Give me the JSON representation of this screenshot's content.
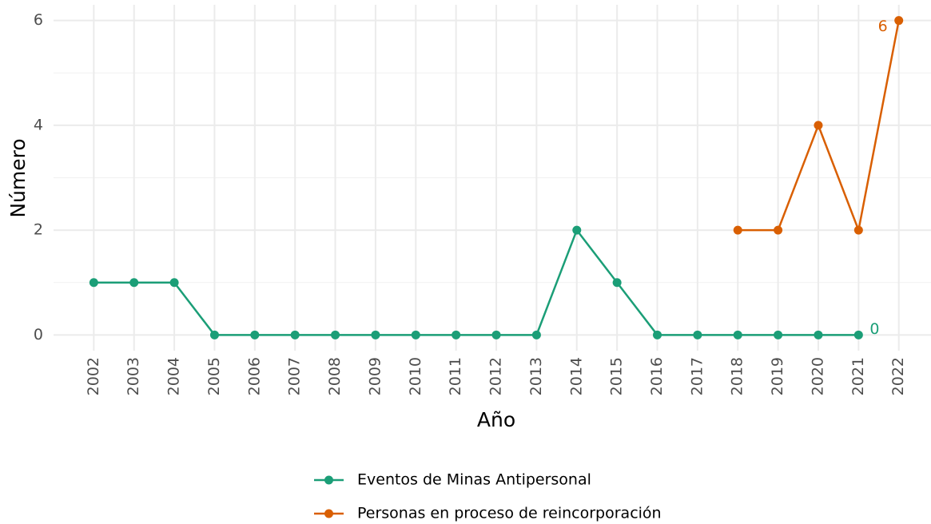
{
  "chart_data": {
    "type": "line",
    "x_label": "Año",
    "y_label": "Número",
    "x": [
      2002,
      2003,
      2004,
      2005,
      2006,
      2007,
      2008,
      2009,
      2010,
      2011,
      2012,
      2013,
      2014,
      2015,
      2016,
      2017,
      2018,
      2019,
      2020,
      2021,
      2022
    ],
    "xlim": [
      2001,
      2022.8
    ],
    "xticks": [
      2002,
      2003,
      2004,
      2005,
      2006,
      2007,
      2008,
      2009,
      2010,
      2011,
      2012,
      2013,
      2014,
      2015,
      2016,
      2017,
      2018,
      2019,
      2020,
      2021,
      2022
    ],
    "ylim": [
      -0.3,
      6.3
    ],
    "yticks": [
      0,
      2,
      4,
      6
    ],
    "grid": true,
    "legend": "bottom",
    "series": [
      {
        "name": "Eventos de Minas Antipersonal",
        "color": "#1b9e77",
        "values": [
          1,
          1,
          1,
          0,
          0,
          0,
          0,
          0,
          0,
          0,
          0,
          0,
          2,
          1,
          0,
          0,
          0,
          0,
          0,
          0,
          null
        ]
      },
      {
        "name": "Personas en proceso de reincorporación",
        "color": "#d95f02",
        "values": [
          null,
          null,
          null,
          null,
          null,
          null,
          null,
          null,
          null,
          null,
          null,
          null,
          null,
          null,
          null,
          null,
          2,
          2,
          4,
          2,
          6
        ]
      }
    ]
  }
}
